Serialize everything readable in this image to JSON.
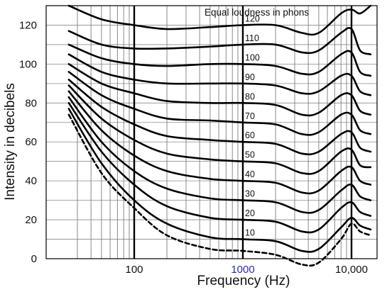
{
  "chart_data": {
    "type": "line",
    "title": "",
    "xlabel": "Frequency (Hz)",
    "ylabel": "Intensity in decibels",
    "annotation": "Equal loudness in phons",
    "x_scale": "log",
    "xlim": [
      20,
      20000
    ],
    "ylim": [
      0,
      130
    ],
    "grid": true,
    "x_ticks": [
      {
        "value": 100,
        "label": "100",
        "color": "#111111"
      },
      {
        "value": 1000,
        "label": "1000",
        "color": "#2a2ab8"
      },
      {
        "value": 10000,
        "label": "10,000",
        "color": "#111111"
      }
    ],
    "y_ticks": [
      {
        "value": 0,
        "label": "0"
      },
      {
        "value": 20,
        "label": "20"
      },
      {
        "value": 40,
        "label": "40"
      },
      {
        "value": 60,
        "label": "60"
      },
      {
        "value": 80,
        "label": "80"
      },
      {
        "value": 100,
        "label": "100"
      },
      {
        "value": 120,
        "label": "120"
      }
    ],
    "x": [
      25,
      50,
      100,
      200,
      500,
      1000,
      2000,
      3500,
      5000,
      8000,
      10000,
      12000,
      15000
    ],
    "series": [
      {
        "label": "",
        "style": "dashed",
        "values": [
          74,
          44,
          26,
          12,
          5,
          4,
          2,
          -3,
          -2,
          10,
          18,
          14,
          12
        ]
      },
      {
        "label": "10",
        "style": "solid",
        "values": [
          77,
          49,
          30,
          18,
          11,
          10,
          9,
          4,
          5,
          16,
          21,
          17,
          15
        ]
      },
      {
        "label": "20",
        "style": "solid",
        "values": [
          80,
          55,
          38,
          27,
          21,
          20,
          19,
          14,
          15,
          26,
          29,
          24,
          22
        ]
      },
      {
        "label": "30",
        "style": "solid",
        "values": [
          83,
          60,
          45,
          36,
          31,
          30,
          29,
          24,
          25,
          35,
          38,
          32,
          30
        ]
      },
      {
        "label": "40",
        "style": "solid",
        "values": [
          86,
          66,
          53,
          45,
          41,
          40,
          39,
          34,
          35,
          45,
          47,
          40,
          38
        ]
      },
      {
        "label": "50",
        "style": "solid",
        "values": [
          89,
          72,
          61,
          54,
          51,
          50,
          49,
          44,
          45,
          55,
          56,
          48,
          47
        ]
      },
      {
        "label": "60",
        "style": "solid",
        "values": [
          92,
          78,
          69,
          63,
          61,
          60,
          59,
          54,
          55,
          64,
          65,
          57,
          55
        ]
      },
      {
        "label": "70",
        "style": "solid",
        "values": [
          96,
          84,
          77,
          72,
          71,
          70,
          69,
          64,
          65,
          74,
          74,
          66,
          64
        ]
      },
      {
        "label": "80",
        "style": "solid",
        "values": [
          100,
          90,
          85,
          81,
          80,
          80,
          79,
          74,
          75,
          84,
          84,
          76,
          74
        ]
      },
      {
        "label": "90",
        "style": "solid",
        "values": [
          105,
          96,
          92,
          90,
          90,
          90,
          89,
          85,
          86,
          94,
          94,
          86,
          84
        ]
      },
      {
        "label": "100",
        "style": "solid",
        "values": [
          110,
          103,
          100,
          99,
          100,
          100,
          99,
          95,
          96,
          105,
          106,
          96,
          94
        ]
      },
      {
        "label": "110",
        "style": "solid",
        "values": [
          117,
          110,
          108,
          108,
          109,
          110,
          110,
          106,
          107,
          116,
          118,
          107,
          105
        ]
      },
      {
        "label": "120",
        "style": "solid",
        "values": [
          130,
          123,
          120,
          118,
          119,
          120,
          120,
          116,
          116,
          126,
          128,
          126,
          130
        ]
      }
    ]
  }
}
